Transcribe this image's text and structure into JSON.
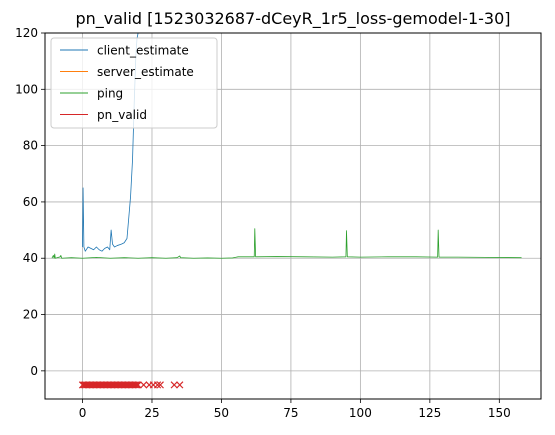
{
  "chart_data": {
    "type": "line",
    "title": "pn_valid [1523032687-dCeyR_1r5_loss-gemodel-1-30]",
    "xlabel": "",
    "ylabel": "",
    "xlim": [
      -13.5,
      165
    ],
    "ylim": [
      -10,
      120
    ],
    "xticks": [
      0,
      25,
      50,
      75,
      100,
      125,
      150
    ],
    "yticks": [
      0,
      20,
      40,
      60,
      80,
      100,
      120
    ],
    "grid": true,
    "legend_position": "upper-left",
    "series": [
      {
        "name": "client_estimate",
        "color": "#1f77b4",
        "points": [
          [
            0,
            44
          ],
          [
            0.2,
            65
          ],
          [
            0.5,
            44
          ],
          [
            1,
            42.5
          ],
          [
            2,
            44
          ],
          [
            3,
            43.5
          ],
          [
            4,
            43
          ],
          [
            5,
            44
          ],
          [
            6,
            43
          ],
          [
            7,
            42.5
          ],
          [
            8,
            43.5
          ],
          [
            9,
            44
          ],
          [
            9.8,
            43
          ],
          [
            10.3,
            50
          ],
          [
            10.8,
            45
          ],
          [
            11.5,
            44
          ],
          [
            12.5,
            44.5
          ],
          [
            14,
            45
          ],
          [
            15,
            45.5
          ],
          [
            16,
            47
          ],
          [
            16.7,
            55
          ],
          [
            17.3,
            62
          ],
          [
            18,
            75
          ],
          [
            18.6,
            95
          ],
          [
            19.2,
            112
          ],
          [
            19.6,
            118
          ],
          [
            20,
            120
          ]
        ]
      },
      {
        "name": "server_estimate",
        "color": "#ff7f0e",
        "points": []
      },
      {
        "name": "ping",
        "color": "#2ca02c",
        "points": [
          [
            -11,
            40
          ],
          [
            -10.5,
            41
          ],
          [
            -10.2,
            40
          ],
          [
            -10,
            41.5
          ],
          [
            -9.8,
            40
          ],
          [
            -8,
            40.5
          ],
          [
            -7.8,
            41
          ],
          [
            -7.5,
            40
          ],
          [
            -4,
            40.2
          ],
          [
            0,
            40
          ],
          [
            5,
            40.3
          ],
          [
            10,
            40
          ],
          [
            15,
            40.2
          ],
          [
            20,
            40
          ],
          [
            25,
            40.2
          ],
          [
            30,
            40
          ],
          [
            34,
            40.2
          ],
          [
            35,
            40.8
          ],
          [
            35.3,
            40.2
          ],
          [
            40,
            40
          ],
          [
            45,
            40.1
          ],
          [
            50,
            40
          ],
          [
            54,
            40.1
          ],
          [
            55,
            40.3
          ],
          [
            56,
            40.5
          ],
          [
            61.8,
            40.5
          ],
          [
            62,
            50.5
          ],
          [
            62.3,
            40.5
          ],
          [
            70,
            40.6
          ],
          [
            80,
            40.5
          ],
          [
            90,
            40.4
          ],
          [
            94.8,
            40.5
          ],
          [
            95,
            49.8
          ],
          [
            95.3,
            40.5
          ],
          [
            100,
            40.4
          ],
          [
            110,
            40.5
          ],
          [
            120,
            40.5
          ],
          [
            127.8,
            40.4
          ],
          [
            128,
            50
          ],
          [
            128.3,
            40.4
          ],
          [
            135,
            40.4
          ],
          [
            145,
            40.3
          ],
          [
            158,
            40.2
          ]
        ]
      },
      {
        "name": "pn_valid",
        "color": "#d62728",
        "marker": "x",
        "y": -5,
        "x": [
          0,
          0.5,
          1,
          1.5,
          2,
          2.5,
          3,
          3.5,
          4,
          4.5,
          5,
          5.5,
          6,
          6.5,
          7,
          7.5,
          8,
          8.5,
          9,
          9.5,
          10,
          10.5,
          11,
          11.5,
          12,
          12.5,
          13,
          13.5,
          14,
          14.5,
          15,
          15.5,
          16,
          16.5,
          17,
          17.5,
          18,
          18.5,
          19,
          19.5,
          20,
          22,
          24,
          25.5,
          27,
          28,
          33,
          35
        ]
      }
    ]
  }
}
